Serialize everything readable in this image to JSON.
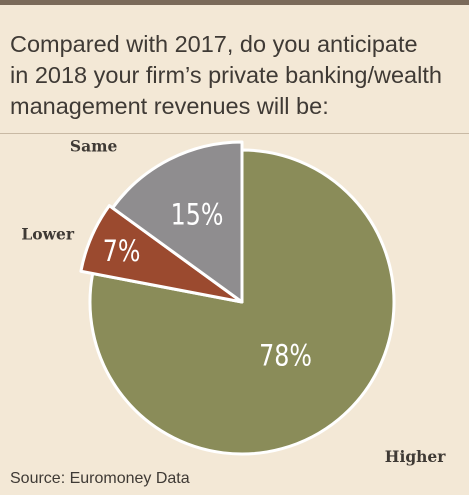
{
  "title_lines": [
    "Compared with 2017, do you anticipate",
    "in 2018 your firm’s private banking/wealth",
    "management revenues will be:"
  ],
  "source": "Source: Euromoney Data",
  "colors": {
    "background": "#f3e8d6",
    "higher": "#8a8c59",
    "lower": "#9b4a2f",
    "same": "#8f8d8f",
    "slice_stroke": "#ffffff"
  },
  "chart_data": {
    "type": "pie",
    "title": "Compared with 2017, do you anticipate in 2018 your firm’s private banking/wealth management revenues will be:",
    "start": "12 o'clock, clockwise",
    "slices": [
      {
        "label": "Higher",
        "value": 78,
        "value_label": "78%",
        "color": "#8a8c59"
      },
      {
        "label": "Lower",
        "value": 7,
        "value_label": "7%",
        "color": "#9b4a2f"
      },
      {
        "label": "Same",
        "value": 15,
        "value_label": "15%",
        "color": "#8f8d8f"
      }
    ]
  }
}
